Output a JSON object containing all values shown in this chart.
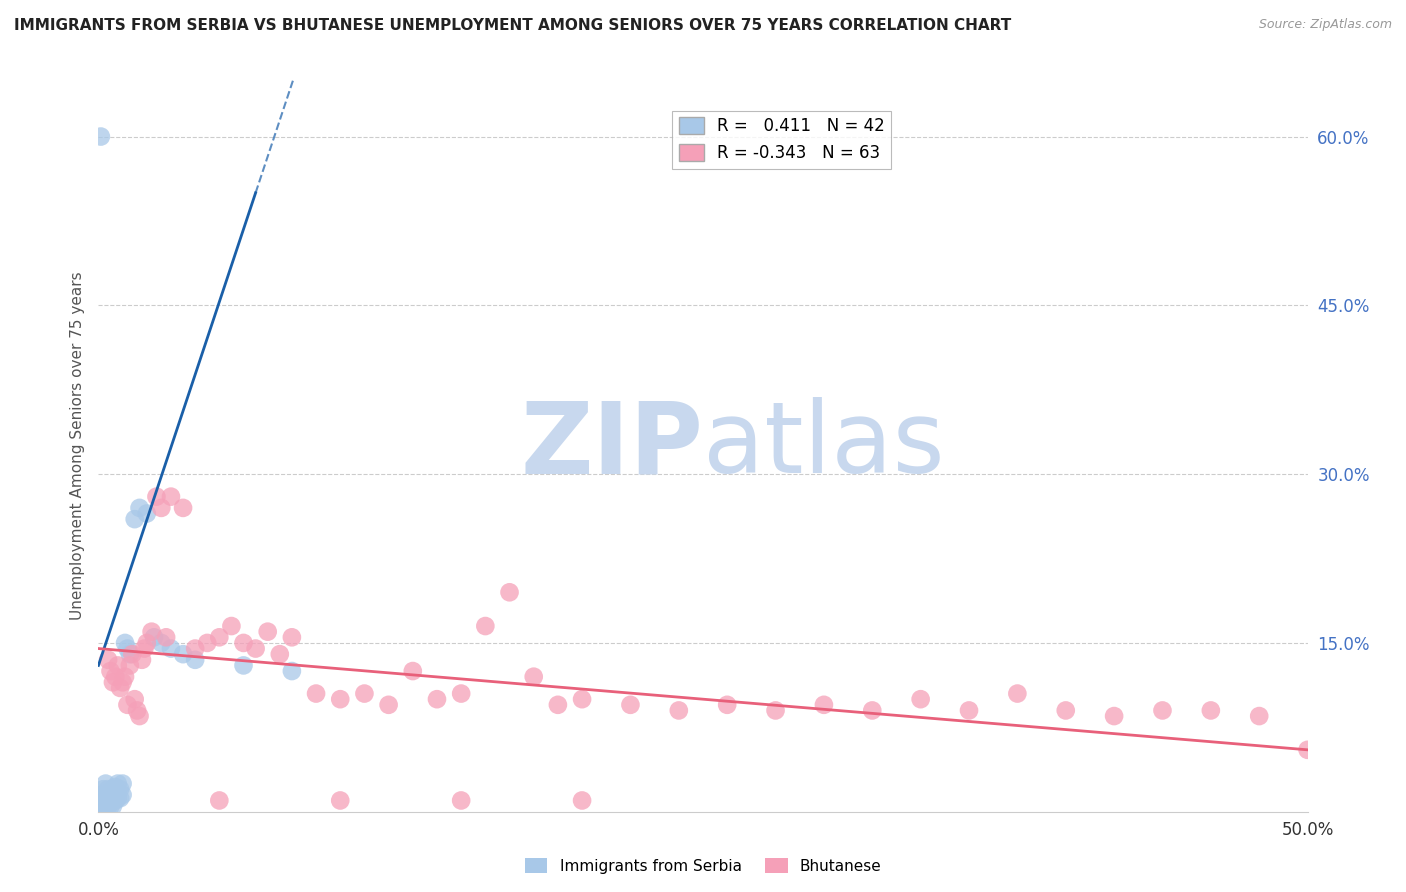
{
  "title": "IMMIGRANTS FROM SERBIA VS BHUTANESE UNEMPLOYMENT AMONG SENIORS OVER 75 YEARS CORRELATION CHART",
  "source": "Source: ZipAtlas.com",
  "ylabel": "Unemployment Among Seniors over 75 years",
  "xlim": [
    0,
    0.5
  ],
  "ylim": [
    0,
    0.65
  ],
  "xticks": [
    0.0,
    0.05,
    0.1,
    0.15,
    0.2,
    0.25,
    0.3,
    0.35,
    0.4,
    0.45,
    0.5
  ],
  "yticks_right": [
    0.0,
    0.15,
    0.3,
    0.45,
    0.6
  ],
  "ytick_labels_right": [
    "",
    "15.0%",
    "30.0%",
    "45.0%",
    "60.0%"
  ],
  "serbia_R": 0.411,
  "serbia_N": 42,
  "bhutan_R": -0.343,
  "bhutan_N": 63,
  "serbia_color": "#a8c8e8",
  "bhutan_color": "#f5a0b8",
  "serbia_line_color": "#1a5fa8",
  "bhutan_line_color": "#e8607a",
  "serbia_x": [
    0.001,
    0.001,
    0.001,
    0.002,
    0.002,
    0.002,
    0.002,
    0.003,
    0.003,
    0.003,
    0.003,
    0.004,
    0.004,
    0.004,
    0.005,
    0.005,
    0.005,
    0.006,
    0.006,
    0.006,
    0.007,
    0.007,
    0.008,
    0.008,
    0.009,
    0.009,
    0.01,
    0.01,
    0.011,
    0.012,
    0.013,
    0.015,
    0.017,
    0.02,
    0.023,
    0.026,
    0.03,
    0.035,
    0.04,
    0.06,
    0.08,
    0.001
  ],
  "serbia_y": [
    0.005,
    0.01,
    0.015,
    0.005,
    0.008,
    0.013,
    0.02,
    0.005,
    0.01,
    0.015,
    0.025,
    0.005,
    0.012,
    0.02,
    0.005,
    0.01,
    0.018,
    0.005,
    0.01,
    0.02,
    0.01,
    0.022,
    0.012,
    0.025,
    0.012,
    0.02,
    0.015,
    0.025,
    0.15,
    0.145,
    0.14,
    0.26,
    0.27,
    0.265,
    0.155,
    0.15,
    0.145,
    0.14,
    0.135,
    0.13,
    0.125,
    0.6
  ],
  "bhutan_x": [
    0.004,
    0.005,
    0.006,
    0.007,
    0.008,
    0.009,
    0.01,
    0.011,
    0.012,
    0.013,
    0.014,
    0.015,
    0.016,
    0.017,
    0.018,
    0.019,
    0.02,
    0.022,
    0.024,
    0.026,
    0.028,
    0.03,
    0.035,
    0.04,
    0.045,
    0.05,
    0.055,
    0.06,
    0.065,
    0.07,
    0.075,
    0.08,
    0.09,
    0.1,
    0.11,
    0.12,
    0.13,
    0.14,
    0.15,
    0.16,
    0.17,
    0.18,
    0.19,
    0.2,
    0.22,
    0.24,
    0.26,
    0.28,
    0.3,
    0.32,
    0.34,
    0.36,
    0.38,
    0.4,
    0.42,
    0.44,
    0.46,
    0.48,
    0.5,
    0.05,
    0.1,
    0.15,
    0.2
  ],
  "bhutan_y": [
    0.135,
    0.125,
    0.115,
    0.12,
    0.13,
    0.11,
    0.115,
    0.12,
    0.095,
    0.13,
    0.14,
    0.1,
    0.09,
    0.085,
    0.135,
    0.145,
    0.15,
    0.16,
    0.28,
    0.27,
    0.155,
    0.28,
    0.27,
    0.145,
    0.15,
    0.155,
    0.165,
    0.15,
    0.145,
    0.16,
    0.14,
    0.155,
    0.105,
    0.1,
    0.105,
    0.095,
    0.125,
    0.1,
    0.105,
    0.165,
    0.195,
    0.12,
    0.095,
    0.1,
    0.095,
    0.09,
    0.095,
    0.09,
    0.095,
    0.09,
    0.1,
    0.09,
    0.105,
    0.09,
    0.085,
    0.09,
    0.09,
    0.085,
    0.055,
    0.01,
    0.01,
    0.01,
    0.01
  ],
  "watermark_zip": "ZIP",
  "watermark_atlas": "atlas",
  "watermark_color": "#c8d8ee",
  "background_color": "#ffffff",
  "grid_color": "#cccccc",
  "serbia_trendline_x0": 0.0,
  "serbia_trendline_x1": 0.1,
  "bhutan_trendline_x0": 0.0,
  "bhutan_trendline_x1": 0.5
}
